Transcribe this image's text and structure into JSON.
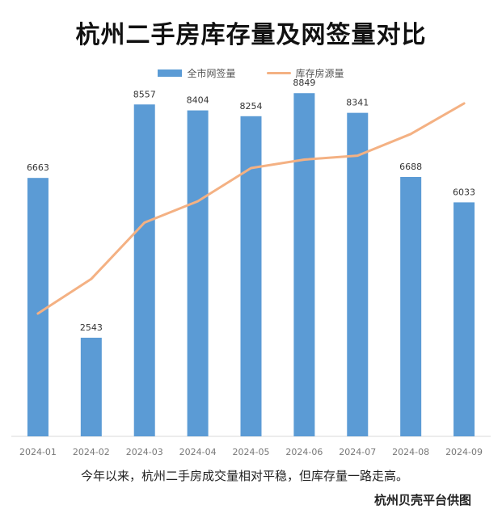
{
  "chart_data": {
    "type": "bar",
    "title": "杭州二手房库存量及网签量对比",
    "categories": [
      "2024-01",
      "2024-02",
      "2024-03",
      "2024-04",
      "2024-05",
      "2024-06",
      "2024-07",
      "2024-08",
      "2024-09"
    ],
    "series": [
      {
        "name": "全市网签量",
        "type": "bar",
        "color": "#5b9bd5",
        "values": [
          6663,
          2543,
          8557,
          8404,
          8254,
          8849,
          8341,
          6688,
          6033
        ]
      },
      {
        "name": "库存房源量",
        "type": "line",
        "color": "#f4b183",
        "relative_level": [
          0.36,
          0.465,
          0.637,
          0.702,
          0.803,
          0.829,
          0.841,
          0.907,
          1.0
        ]
      }
    ],
    "ylim": [
      0,
      10000
    ],
    "xlabel": "",
    "ylabel": "",
    "grid": false,
    "legend": "top-center"
  },
  "caption": "今年以来，杭州二手房成交量相对平稳，但库存量一路走高。",
  "credit": "杭州贝壳平台供图"
}
